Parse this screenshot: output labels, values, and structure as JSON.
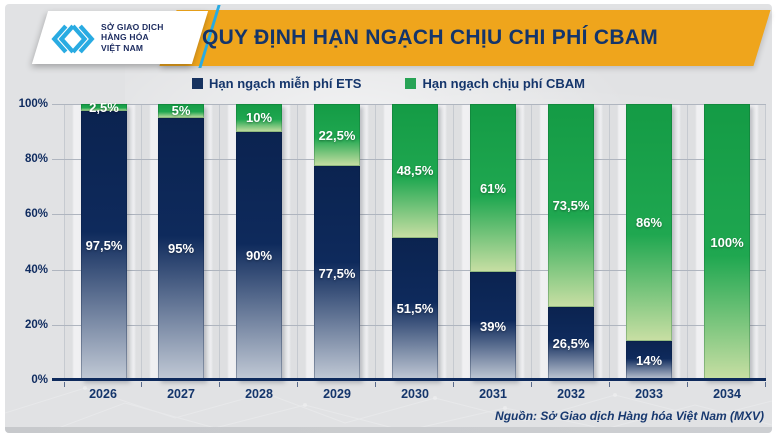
{
  "logo": {
    "lines": [
      "SỞ GIAO DỊCH",
      "HÀNG HÓA",
      "VIỆT NAM"
    ],
    "trademark": "™"
  },
  "header": {
    "title": "QUY ĐỊNH HẠN NGẠCH CHỊU CHI PHÍ CBAM"
  },
  "legend": {
    "items": [
      {
        "label": "Hạn ngạch miễn phí ETS",
        "color": "#16325F"
      },
      {
        "label": "Hạn ngạch chịu phí CBAM",
        "color": "#27A355"
      }
    ]
  },
  "chart_data": {
    "type": "bar",
    "stacked": true,
    "title": "QUY ĐỊNH HẠN NGẠCH CHỊU CHI PHÍ CBAM",
    "categories": [
      "2026",
      "2027",
      "2028",
      "2029",
      "2030",
      "2031",
      "2032",
      "2033",
      "2034"
    ],
    "series": [
      {
        "name": "Hạn ngạch miễn phí ETS",
        "color": "#0E2A5C",
        "values": [
          97.5,
          95,
          90,
          77.5,
          51.5,
          39,
          26.5,
          14,
          0
        ],
        "labels": [
          "97,5%",
          "95%",
          "90%",
          "77,5%",
          "51,5%",
          "39%",
          "26,5%",
          "14%",
          ""
        ]
      },
      {
        "name": "Hạn ngạch chịu phí CBAM",
        "color": "#1FA750",
        "values": [
          2.5,
          5,
          10,
          22.5,
          48.5,
          61,
          73.5,
          86,
          100
        ],
        "labels": [
          "2,5%",
          "5%",
          "10%",
          "22,5%",
          "48,5%",
          "61%",
          "73,5%",
          "86%",
          "100%"
        ]
      }
    ],
    "y_ticks": [
      "100%",
      "80%",
      "60%",
      "40%",
      "20%",
      "0%"
    ],
    "ylim": [
      0,
      100
    ],
    "grid": true,
    "legend_position": "top"
  },
  "source": "Nguồn: Sở Giao dịch Hàng hóa Việt Nam (MXV)",
  "colors": {
    "brand_blue": "#29ABE2",
    "navy": "#0E2A5C",
    "navy_fade": "#C2CAD6",
    "navy_text": "#14356B",
    "green": "#1FA750",
    "green_fade": "#C9DFA4",
    "banner_yellow": "#EFA51C",
    "bg_gray": "#E1E2E4"
  }
}
